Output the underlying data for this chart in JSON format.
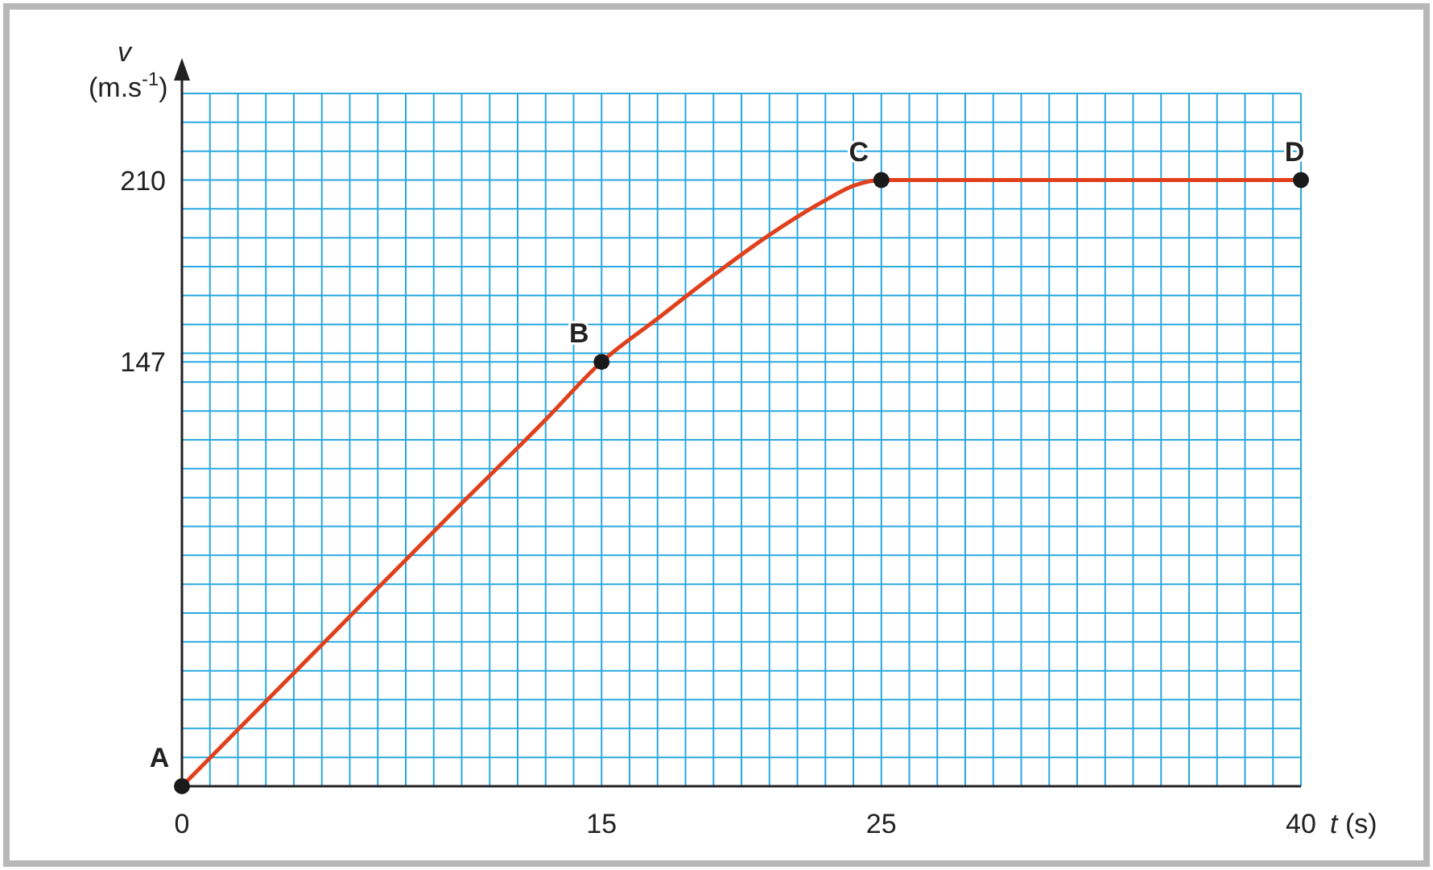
{
  "chart_data": {
    "type": "line",
    "xlabel": "t (s)",
    "ylabel": "v (m.s$^{-1}$)",
    "xlim": [
      0,
      40
    ],
    "ylim": [
      0,
      240
    ],
    "xticks": [
      0,
      {
        "value": 1,
        "label": null
      },
      {
        "value": 2,
        "label": null
      },
      {
        "value": 3,
        "label": null
      },
      {
        "value": 4,
        "label": null
      },
      {
        "value": 5,
        "label": null
      },
      {
        "value": 6,
        "label": null
      },
      {
        "value": 7,
        "label": null
      },
      {
        "value": 8,
        "label": null
      },
      {
        "value": 9,
        "label": null
      },
      {
        "value": 10,
        "label": null
      },
      {
        "value": 11,
        "label": null
      },
      {
        "value": 12,
        "label": null
      },
      {
        "value": 13,
        "label": null
      },
      {
        "value": 14,
        "label": null
      },
      15,
      {
        "value": 16,
        "label": null
      },
      {
        "value": 17,
        "label": null
      },
      {
        "value": 18,
        "label": null
      },
      {
        "value": 19,
        "label": null
      },
      {
        "value": 20,
        "label": null
      },
      {
        "value": 21,
        "label": null
      },
      {
        "value": 22,
        "label": null
      },
      {
        "value": 23,
        "label": null
      },
      {
        "value": 24,
        "label": null
      },
      25,
      {
        "value": 26,
        "label": null
      },
      {
        "value": 27,
        "label": null
      },
      {
        "value": 28,
        "label": null
      },
      {
        "value": 29,
        "label": null
      },
      {
        "value": 30,
        "label": null
      },
      {
        "value": 31,
        "label": null
      },
      {
        "value": 32,
        "label": null
      },
      {
        "value": 33,
        "label": null
      },
      {
        "value": 34,
        "label": null
      },
      {
        "value": 35,
        "label": null
      },
      {
        "value": 36,
        "label": null
      },
      {
        "value": 37,
        "label": null
      },
      {
        "value": 38,
        "label": null
      },
      {
        "value": 39,
        "label": null
      },
      40
    ],
    "yticks": [
      {
        "value": 0,
        "label": null
      },
      {
        "value": 10,
        "label": null
      },
      {
        "value": 20,
        "label": null
      },
      {
        "value": 30,
        "label": null
      },
      {
        "value": 40,
        "label": null
      },
      {
        "value": 50,
        "label": null
      },
      {
        "value": 60,
        "label": null
      },
      {
        "value": 70,
        "label": null
      },
      {
        "value": 80,
        "label": null
      },
      {
        "value": 90,
        "label": null
      },
      {
        "value": 100,
        "label": null
      },
      {
        "value": 110,
        "label": null
      },
      {
        "value": 120,
        "label": null
      },
      {
        "value": 130,
        "label": null
      },
      {
        "value": 140,
        "label": null
      },
      147,
      {
        "value": 150,
        "label": null
      },
      {
        "value": 160,
        "label": null
      },
      {
        "value": 170,
        "label": null
      },
      {
        "value": 180,
        "label": null
      },
      {
        "value": 190,
        "label": null
      },
      {
        "value": 200,
        "label": null
      },
      210,
      {
        "value": 220,
        "label": null
      },
      {
        "value": 230,
        "label": null
      },
      {
        "value": 240,
        "label": null
      }
    ],
    "grid": true,
    "series": [
      {
        "color": "#e0401c",
        "marker": "none",
        "x": [
          0,
          5,
          10,
          13,
          15,
          17,
          19,
          21,
          23,
          24,
          25,
          30,
          35,
          40
        ],
        "values": [
          0,
          49,
          98,
          127,
          147,
          162,
          177,
          191,
          203,
          208,
          210,
          210,
          210,
          210
        ]
      },
      {
        "type": "scatter",
        "color": "#1a1a1a",
        "marker": "circle",
        "x": [
          0,
          15,
          25,
          40
        ],
        "values": [
          0,
          147,
          210,
          210
        ]
      }
    ],
    "annotations": [
      {
        "text": "A",
        "x": 0,
        "y": 0
      },
      {
        "text": "B",
        "x": 15,
        "y": 147
      },
      {
        "text": "C",
        "x": 25,
        "y": 210
      },
      {
        "text": "D",
        "x": 40,
        "y": 210
      }
    ]
  }
}
